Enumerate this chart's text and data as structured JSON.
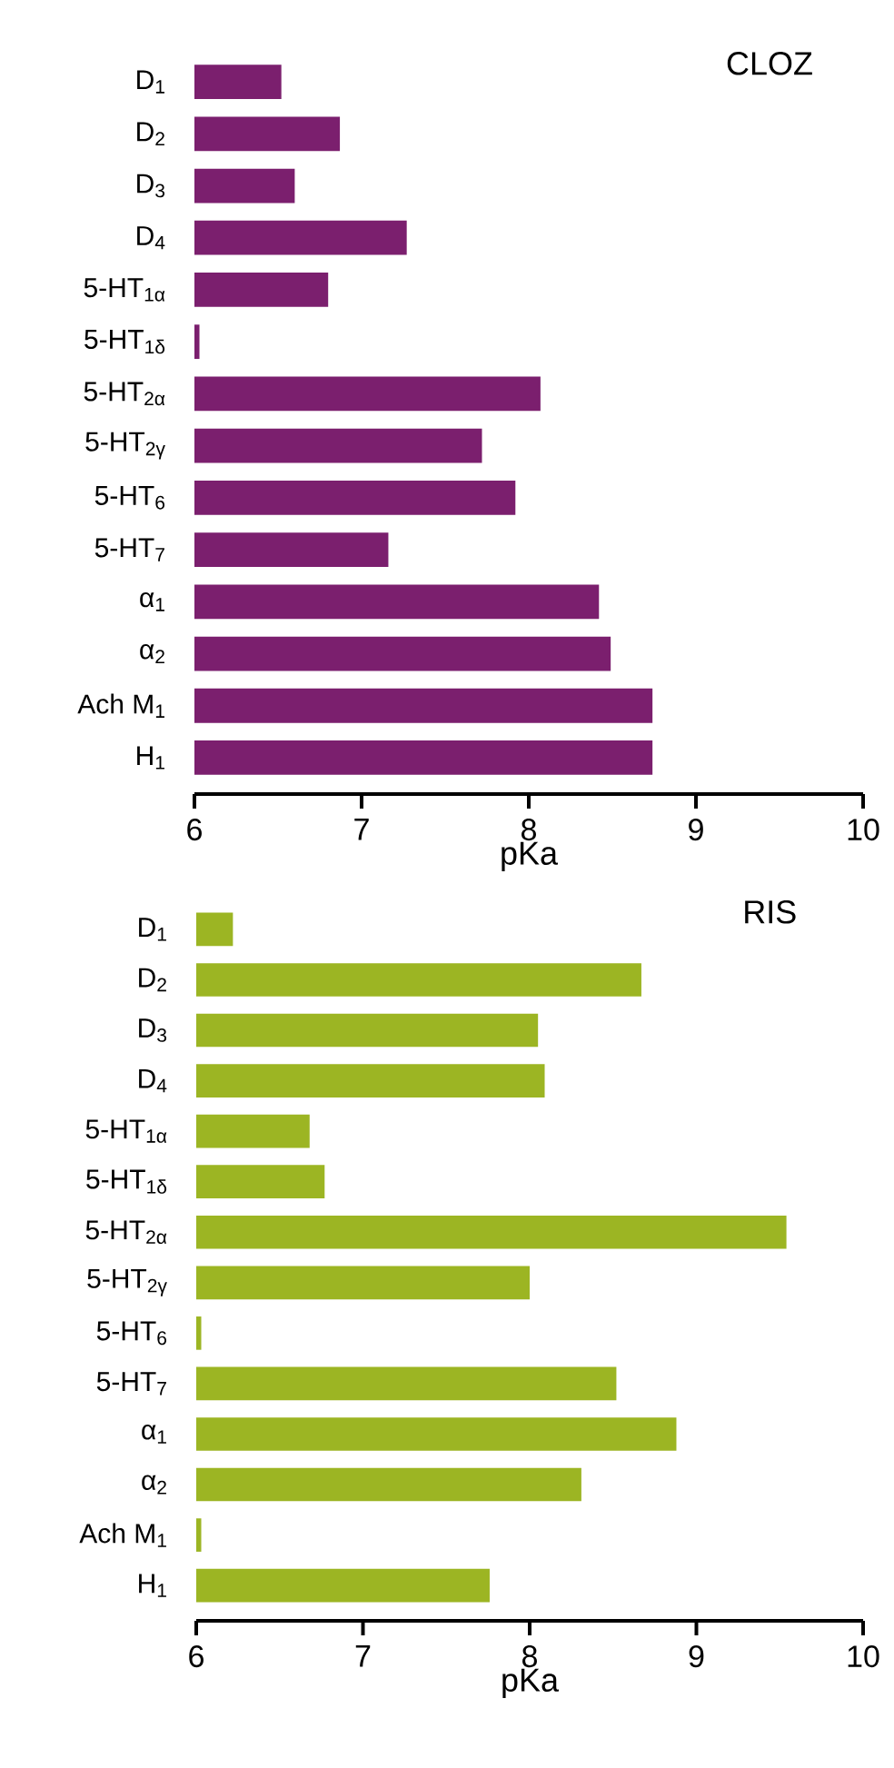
{
  "chart_data": [
    {
      "type": "bar",
      "orientation": "horizontal",
      "title": "CLOZ",
      "xlabel": "pKa",
      "categories": [
        "D$_{1}$",
        "D$_{2}$",
        "D$_{3}$",
        "D$_{4}$",
        "5-HT$_{1α}$",
        "5-HT$_{1δ}$",
        "5-HT$_{2α}$",
        "5-HT$_{2γ}$",
        "5-HT$_{6}$",
        "5-HT$_{7}$",
        "α$_{1}$",
        "α$_{2}$",
        "Ach M$_{1}$",
        "H$_{1}$"
      ],
      "values": [
        6.52,
        6.87,
        6.6,
        7.27,
        6.8,
        6.03,
        8.07,
        7.72,
        7.92,
        7.16,
        8.42,
        8.49,
        8.74,
        8.74
      ],
      "color": "#7b1f6e",
      "xlim": [
        6,
        10
      ],
      "xticks": [
        6,
        7,
        8,
        9,
        10
      ],
      "grid": false
    },
    {
      "type": "bar",
      "orientation": "horizontal",
      "title": "RIS",
      "xlabel": "pKa",
      "categories": [
        "D$_{1}$",
        "D$_{2}$",
        "D$_{3}$",
        "D$_{4}$",
        "5-HT$_{1α}$",
        "5-HT$_{1δ}$",
        "5-HT$_{2α}$",
        "5-HT$_{2γ}$",
        "5-HT$_{6}$",
        "5-HT$_{7}$",
        "α$_{1}$",
        "α$_{2}$",
        "Ach M$_{1}$",
        "H$_{1}$"
      ],
      "values": [
        6.22,
        8.67,
        8.05,
        8.09,
        6.68,
        6.77,
        9.54,
        8.0,
        6.03,
        8.52,
        8.88,
        8.31,
        6.03,
        7.76
      ],
      "color": "#9cb523",
      "xlim": [
        6,
        10
      ],
      "xticks": [
        6,
        7,
        8,
        9,
        10
      ],
      "grid": false
    }
  ]
}
